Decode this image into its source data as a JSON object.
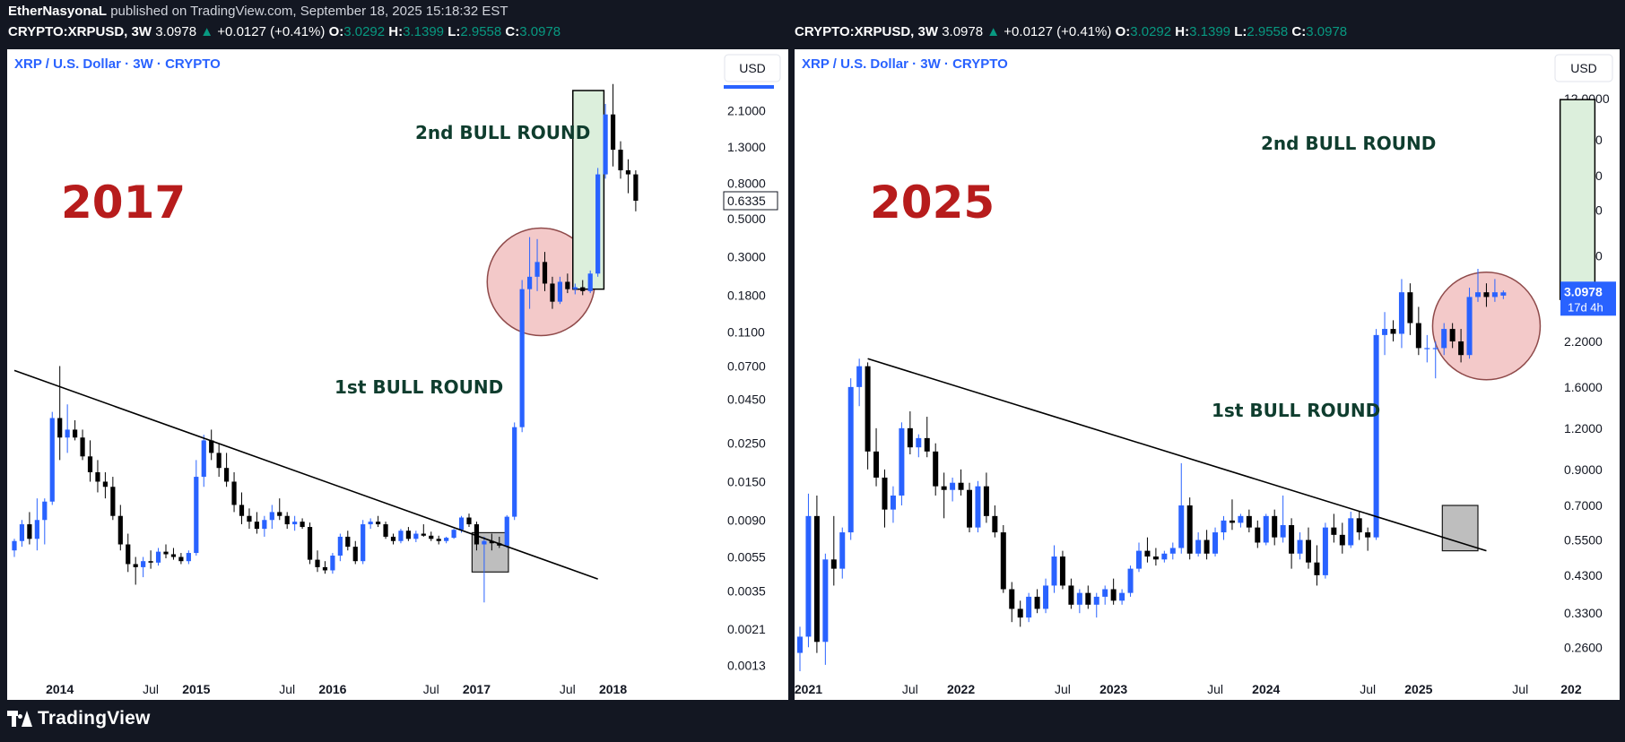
{
  "publish_line": {
    "author": "EtherNasyonaL",
    "text": " published on TradingView.com, September 18, 2025 15:18:32 EST"
  },
  "symbol_line": {
    "symbol": "CRYPTO:XRPUSD, 3W",
    "last": "3.0978",
    "change": "+0.0127 (+0.41%)",
    "o_label": "O:",
    "o": "3.0292",
    "h_label": "H:",
    "h": "3.1399",
    "l_label": "L:",
    "l": "2.9558",
    "c_label": "C:",
    "c": "3.0978"
  },
  "footer": {
    "brand": "TradingView",
    "logo_icon": "tradingview-logo-icon"
  },
  "colors": {
    "up": "#2962ff",
    "down": "#000000",
    "year_label": "#b71c1c",
    "annotation_text": "#0f3d2e",
    "circle_fill": "#f3c9c9",
    "circle_stroke": "#8f4a4a",
    "green_box": "#dcefdc",
    "gray_box": "#b7b7b7",
    "price_tag": "#2962ff"
  },
  "chart_data": [
    {
      "type": "candlestick",
      "panel": "left",
      "title": "XRP / U.S. Dollar · 3W · CRYPTO",
      "currency_button": "USD",
      "big_label": "2017",
      "y_scale": "log",
      "ylim": [
        0.0012,
        3.1
      ],
      "y_ticks": [
        "2.1000",
        "1.3000",
        "0.8000",
        "0.5000",
        "0.3000",
        "0.1800",
        "0.1100",
        "0.0700",
        "0.0450",
        "0.0250",
        "0.0150",
        "0.0090",
        "0.0055",
        "0.0035",
        "0.0021",
        "0.0013"
      ],
      "x_tick_labels": [
        "2014",
        "Jul",
        "2015",
        "Jul",
        "2016",
        "Jul",
        "2017",
        "Jul",
        "2018"
      ],
      "x_tick_index": [
        6,
        18,
        24,
        36,
        42,
        55,
        61,
        73,
        79
      ],
      "current_price_label": "0.6335",
      "annotations": [
        "1st BULL ROUND",
        "2nd BULL ROUND"
      ],
      "trendline": {
        "from": [
          0,
          0.066
        ],
        "to": [
          77,
          0.0041
        ]
      },
      "candles": [
        [
          0.006,
          0.007,
          0.0055,
          0.0068
        ],
        [
          0.0068,
          0.009,
          0.0063,
          0.0085
        ],
        [
          0.0085,
          0.01,
          0.0065,
          0.007
        ],
        [
          0.007,
          0.012,
          0.006,
          0.009
        ],
        [
          0.009,
          0.012,
          0.0065,
          0.0115
        ],
        [
          0.0115,
          0.038,
          0.011,
          0.035
        ],
        [
          0.035,
          0.07,
          0.02,
          0.027
        ],
        [
          0.027,
          0.042,
          0.022,
          0.03
        ],
        [
          0.03,
          0.034,
          0.026,
          0.027
        ],
        [
          0.027,
          0.03,
          0.02,
          0.021
        ],
        [
          0.021,
          0.026,
          0.015,
          0.017
        ],
        [
          0.017,
          0.02,
          0.013,
          0.015
        ],
        [
          0.015,
          0.017,
          0.012,
          0.014
        ],
        [
          0.014,
          0.016,
          0.009,
          0.0095
        ],
        [
          0.0095,
          0.011,
          0.006,
          0.0065
        ],
        [
          0.0065,
          0.0075,
          0.0045,
          0.005
        ],
        [
          0.005,
          0.0055,
          0.0038,
          0.0048
        ],
        [
          0.0048,
          0.0055,
          0.0042,
          0.0052
        ],
        [
          0.0052,
          0.006,
          0.0047,
          0.0051
        ],
        [
          0.0051,
          0.0062,
          0.0049,
          0.0059
        ],
        [
          0.0059,
          0.0065,
          0.0054,
          0.0057
        ],
        [
          0.0057,
          0.0062,
          0.0053,
          0.0055
        ],
        [
          0.0055,
          0.0058,
          0.005,
          0.0052
        ],
        [
          0.0052,
          0.006,
          0.005,
          0.0058
        ],
        [
          0.0058,
          0.02,
          0.0056,
          0.016
        ],
        [
          0.016,
          0.028,
          0.014,
          0.026
        ],
        [
          0.026,
          0.03,
          0.02,
          0.022
        ],
        [
          0.022,
          0.025,
          0.016,
          0.018
        ],
        [
          0.018,
          0.022,
          0.014,
          0.015
        ],
        [
          0.015,
          0.017,
          0.01,
          0.011
        ],
        [
          0.011,
          0.013,
          0.0085,
          0.0095
        ],
        [
          0.0095,
          0.0105,
          0.008,
          0.0088
        ],
        [
          0.0088,
          0.01,
          0.0075,
          0.008
        ],
        [
          0.008,
          0.0095,
          0.0072,
          0.009
        ],
        [
          0.009,
          0.011,
          0.008,
          0.01
        ],
        [
          0.01,
          0.012,
          0.009,
          0.0095
        ],
        [
          0.0095,
          0.01,
          0.008,
          0.0085
        ],
        [
          0.0085,
          0.0095,
          0.0078,
          0.0088
        ],
        [
          0.0088,
          0.0092,
          0.008,
          0.0082
        ],
        [
          0.0082,
          0.0087,
          0.005,
          0.0053
        ],
        [
          0.0053,
          0.006,
          0.0045,
          0.0048
        ],
        [
          0.0048,
          0.0052,
          0.0044,
          0.0046
        ],
        [
          0.0046,
          0.0058,
          0.0044,
          0.0056
        ],
        [
          0.0056,
          0.0075,
          0.0052,
          0.0072
        ],
        [
          0.0072,
          0.0078,
          0.006,
          0.0063
        ],
        [
          0.0063,
          0.0068,
          0.005,
          0.0052
        ],
        [
          0.0052,
          0.009,
          0.005,
          0.0085
        ],
        [
          0.0085,
          0.0092,
          0.008,
          0.0088
        ],
        [
          0.0088,
          0.0095,
          0.0082,
          0.0085
        ],
        [
          0.0085,
          0.0088,
          0.007,
          0.0072
        ],
        [
          0.0072,
          0.0075,
          0.0065,
          0.0068
        ],
        [
          0.0068,
          0.008,
          0.0066,
          0.0078
        ],
        [
          0.0078,
          0.0082,
          0.0068,
          0.007
        ],
        [
          0.007,
          0.0078,
          0.0067,
          0.0075
        ],
        [
          0.0075,
          0.0085,
          0.0072,
          0.0073
        ],
        [
          0.0073,
          0.0077,
          0.0068,
          0.007
        ],
        [
          0.007,
          0.0073,
          0.0065,
          0.0068
        ],
        [
          0.0068,
          0.0072,
          0.0066,
          0.0071
        ],
        [
          0.0071,
          0.008,
          0.007,
          0.0079
        ],
        [
          0.0079,
          0.0095,
          0.0076,
          0.0093
        ],
        [
          0.0093,
          0.0098,
          0.0082,
          0.0085
        ],
        [
          0.0085,
          0.0088,
          0.006,
          0.0065
        ],
        [
          0.0065,
          0.0072,
          0.003,
          0.0068
        ],
        [
          0.0068,
          0.0075,
          0.006,
          0.0066
        ],
        [
          0.0066,
          0.0072,
          0.0062,
          0.0064
        ],
        [
          0.0064,
          0.0096,
          0.0062,
          0.0094
        ],
        [
          0.0094,
          0.033,
          0.009,
          0.031
        ],
        [
          0.031,
          0.22,
          0.029,
          0.195
        ],
        [
          0.195,
          0.39,
          0.15,
          0.23
        ],
        [
          0.23,
          0.38,
          0.19,
          0.28
        ],
        [
          0.28,
          0.32,
          0.19,
          0.21
        ],
        [
          0.21,
          0.23,
          0.15,
          0.165
        ],
        [
          0.165,
          0.23,
          0.16,
          0.215
        ],
        [
          0.215,
          0.24,
          0.185,
          0.195
        ],
        [
          0.195,
          0.21,
          0.182,
          0.2
        ],
        [
          0.2,
          0.22,
          0.18,
          0.19
        ],
        [
          0.19,
          0.25,
          0.185,
          0.24
        ],
        [
          0.24,
          0.98,
          0.23,
          0.9
        ],
        [
          0.9,
          2.3,
          0.85,
          2.0
        ],
        [
          2.0,
          3.0,
          1.0,
          1.25
        ],
        [
          1.25,
          1.4,
          0.85,
          0.95
        ],
        [
          0.95,
          1.1,
          0.7,
          0.9
        ],
        [
          0.9,
          0.95,
          0.55,
          0.6335
        ]
      ]
    },
    {
      "type": "candlestick",
      "panel": "right",
      "title": "XRP / U.S. Dollar · 3W · CRYPTO",
      "currency_button": "USD",
      "big_label": "2025",
      "y_scale": "log",
      "ylim": [
        0.22,
        13.5
      ],
      "y_ticks": [
        "12.0000",
        "9.0000",
        "7.0000",
        "5.5000",
        "4.0000",
        "2.2000",
        "1.6000",
        "1.2000",
        "0.9000",
        "0.7000",
        "0.5500",
        "0.4300",
        "0.3300",
        "0.2600"
      ],
      "x_tick_labels": [
        "2021",
        "Jul",
        "2022",
        "Jul",
        "2023",
        "Jul",
        "2024",
        "Jul",
        "2025",
        "Jul",
        "202"
      ],
      "x_tick_index": [
        1,
        13,
        19,
        31,
        37,
        49,
        55,
        67,
        73,
        85,
        91
      ],
      "current_price_label": "3.0978",
      "countdown_label": "17d 4h",
      "annotations": [
        "1st BULL ROUND",
        "2nd BULL ROUND"
      ],
      "trendline": {
        "from": [
          8,
          1.95
        ],
        "to": [
          81,
          0.51
        ]
      },
      "candles": [
        [
          0.25,
          0.3,
          0.22,
          0.28
        ],
        [
          0.28,
          0.76,
          0.26,
          0.65
        ],
        [
          0.65,
          0.75,
          0.25,
          0.27
        ],
        [
          0.27,
          0.5,
          0.23,
          0.48
        ],
        [
          0.48,
          0.65,
          0.4,
          0.45
        ],
        [
          0.45,
          0.6,
          0.42,
          0.58
        ],
        [
          0.58,
          1.7,
          0.55,
          1.6
        ],
        [
          1.6,
          1.95,
          1.4,
          1.85
        ],
        [
          1.85,
          1.9,
          0.9,
          1.02
        ],
        [
          1.02,
          1.2,
          0.8,
          0.85
        ],
        [
          0.85,
          0.9,
          0.6,
          0.68
        ],
        [
          0.68,
          0.8,
          0.62,
          0.75
        ],
        [
          0.75,
          1.25,
          0.7,
          1.2
        ],
        [
          1.2,
          1.35,
          1.0,
          1.05
        ],
        [
          1.05,
          1.15,
          0.98,
          1.12
        ],
        [
          1.12,
          1.3,
          0.98,
          1.02
        ],
        [
          1.02,
          1.08,
          0.75,
          0.8
        ],
        [
          0.8,
          0.88,
          0.64,
          0.78
        ],
        [
          0.78,
          0.85,
          0.72,
          0.82
        ],
        [
          0.82,
          0.9,
          0.75,
          0.78
        ],
        [
          0.78,
          0.82,
          0.58,
          0.6
        ],
        [
          0.6,
          0.83,
          0.58,
          0.8
        ],
        [
          0.8,
          0.88,
          0.62,
          0.65
        ],
        [
          0.65,
          0.7,
          0.56,
          0.58
        ],
        [
          0.58,
          0.61,
          0.38,
          0.39
        ],
        [
          0.39,
          0.41,
          0.31,
          0.34
        ],
        [
          0.34,
          0.36,
          0.3,
          0.32
        ],
        [
          0.32,
          0.38,
          0.31,
          0.37
        ],
        [
          0.37,
          0.39,
          0.33,
          0.34
        ],
        [
          0.34,
          0.42,
          0.33,
          0.4
        ],
        [
          0.4,
          0.53,
          0.38,
          0.49
        ],
        [
          0.49,
          0.51,
          0.39,
          0.4
        ],
        [
          0.4,
          0.42,
          0.34,
          0.35
        ],
        [
          0.35,
          0.39,
          0.33,
          0.38
        ],
        [
          0.38,
          0.4,
          0.34,
          0.35
        ],
        [
          0.35,
          0.38,
          0.32,
          0.37
        ],
        [
          0.37,
          0.4,
          0.35,
          0.39
        ],
        [
          0.39,
          0.42,
          0.35,
          0.36
        ],
        [
          0.36,
          0.39,
          0.35,
          0.38
        ],
        [
          0.38,
          0.46,
          0.37,
          0.45
        ],
        [
          0.45,
          0.54,
          0.44,
          0.51
        ],
        [
          0.51,
          0.56,
          0.47,
          0.49
        ],
        [
          0.49,
          0.52,
          0.46,
          0.48
        ],
        [
          0.48,
          0.51,
          0.47,
          0.5
        ],
        [
          0.5,
          0.54,
          0.48,
          0.52
        ],
        [
          0.52,
          0.94,
          0.5,
          0.7
        ],
        [
          0.7,
          0.74,
          0.48,
          0.5
        ],
        [
          0.5,
          0.58,
          0.49,
          0.55
        ],
        [
          0.55,
          0.59,
          0.48,
          0.5
        ],
        [
          0.5,
          0.6,
          0.49,
          0.58
        ],
        [
          0.58,
          0.65,
          0.55,
          0.63
        ],
        [
          0.63,
          0.73,
          0.59,
          0.62
        ],
        [
          0.62,
          0.66,
          0.6,
          0.65
        ],
        [
          0.65,
          0.68,
          0.58,
          0.6
        ],
        [
          0.6,
          0.63,
          0.52,
          0.54
        ],
        [
          0.54,
          0.66,
          0.53,
          0.65
        ],
        [
          0.65,
          0.68,
          0.53,
          0.56
        ],
        [
          0.56,
          0.75,
          0.54,
          0.61
        ],
        [
          0.61,
          0.64,
          0.45,
          0.5
        ],
        [
          0.5,
          0.58,
          0.48,
          0.55
        ],
        [
          0.55,
          0.6,
          0.45,
          0.47
        ],
        [
          0.47,
          0.53,
          0.4,
          0.43
        ],
        [
          0.43,
          0.62,
          0.42,
          0.6
        ],
        [
          0.6,
          0.66,
          0.54,
          0.57
        ],
        [
          0.57,
          0.62,
          0.5,
          0.53
        ],
        [
          0.53,
          0.67,
          0.52,
          0.64
        ],
        [
          0.64,
          0.67,
          0.55,
          0.58
        ],
        [
          0.58,
          0.6,
          0.51,
          0.56
        ],
        [
          0.56,
          2.4,
          0.55,
          2.3
        ],
        [
          2.3,
          2.7,
          2.0,
          2.4
        ],
        [
          2.4,
          2.55,
          2.2,
          2.32
        ],
        [
          2.32,
          3.4,
          2.1,
          3.1
        ],
        [
          3.1,
          3.3,
          2.3,
          2.5
        ],
        [
          2.5,
          2.8,
          2.0,
          2.1
        ],
        [
          2.1,
          2.3,
          1.9,
          2.1
        ],
        [
          2.1,
          2.2,
          1.7,
          2.1
        ],
        [
          2.1,
          2.5,
          2.0,
          2.4
        ],
        [
          2.4,
          2.5,
          2.1,
          2.2
        ],
        [
          2.2,
          2.4,
          1.9,
          2.0
        ],
        [
          2.0,
          3.2,
          1.95,
          3.0
        ],
        [
          3.0,
          3.65,
          2.9,
          3.1
        ],
        [
          3.1,
          3.3,
          2.8,
          3.0
        ],
        [
          3.0,
          3.4,
          2.9,
          3.1
        ],
        [
          3.0292,
          3.1399,
          2.9558,
          3.0978
        ]
      ]
    }
  ]
}
